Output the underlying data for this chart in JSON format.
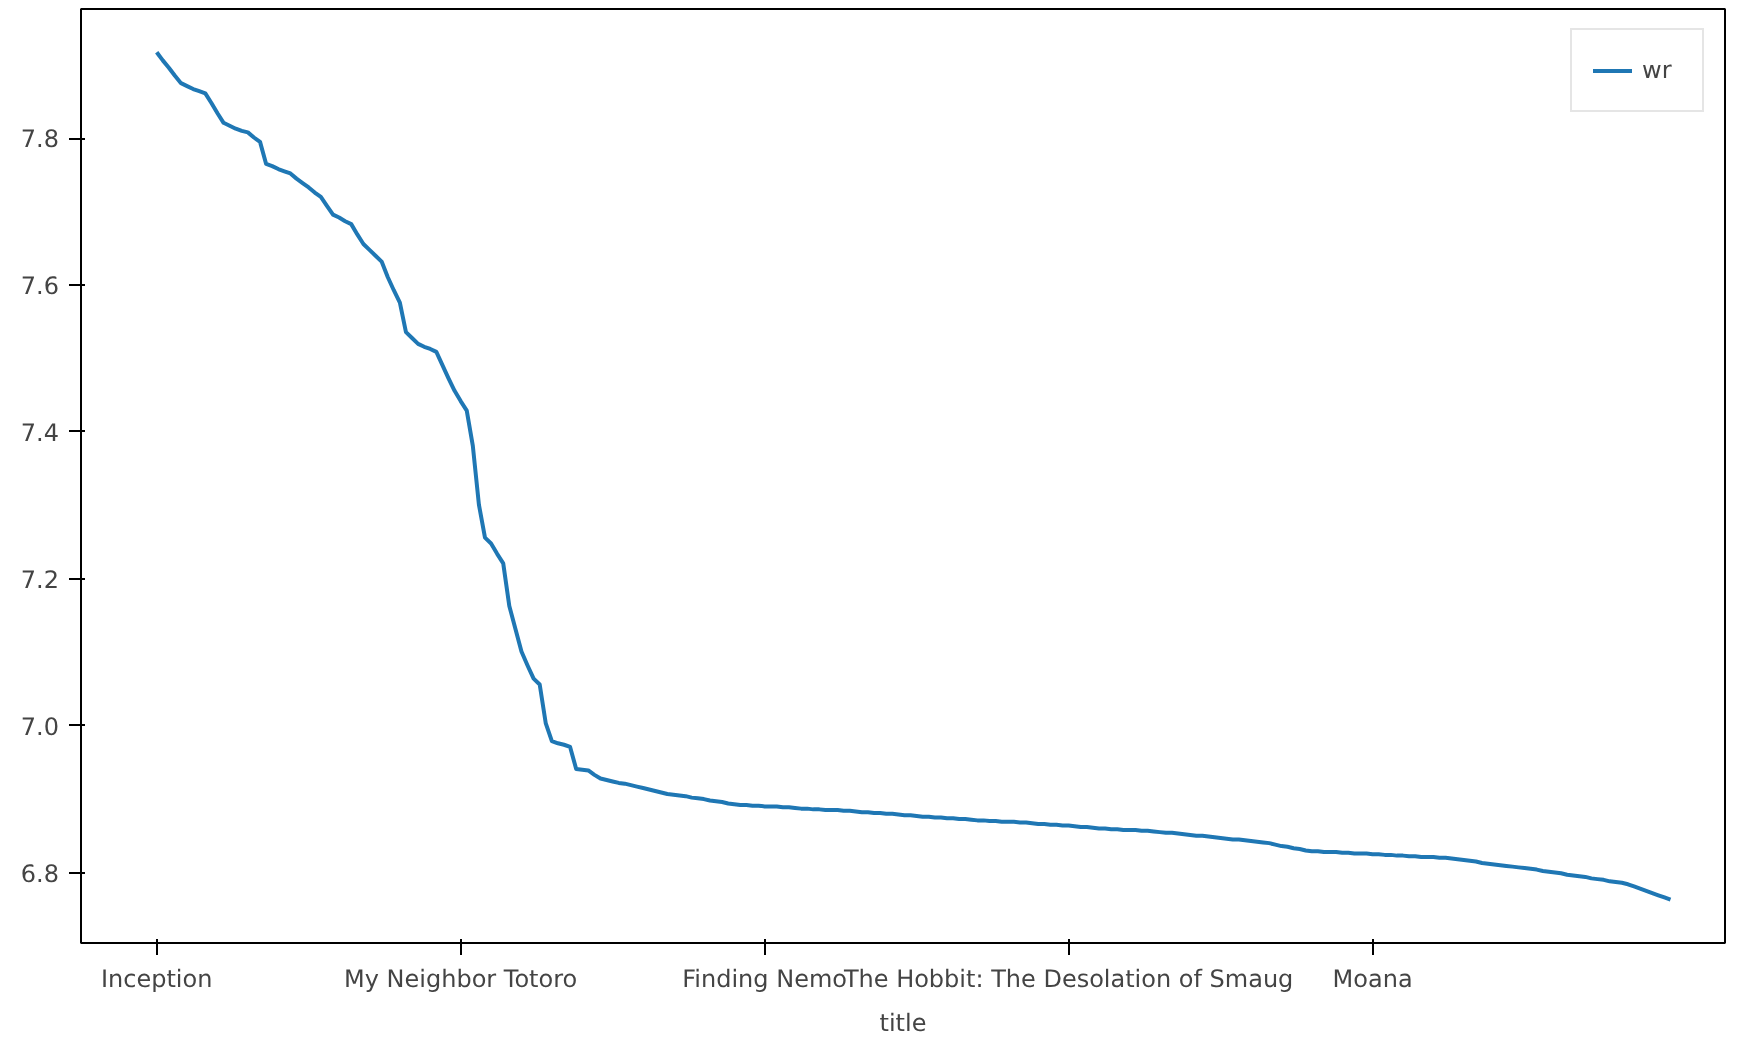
{
  "chart_data": {
    "type": "line",
    "xlabel": "title",
    "categories": [
      "Inception",
      null,
      null,
      null,
      null,
      null,
      null,
      null,
      null,
      null,
      null,
      null,
      null,
      null,
      null,
      null,
      null,
      null,
      null,
      null,
      null,
      null,
      null,
      null,
      null,
      null,
      null,
      null,
      null,
      null,
      null,
      null,
      null,
      null,
      null,
      null,
      null,
      null,
      null,
      null,
      null,
      null,
      null,
      null,
      null,
      null,
      null,
      null,
      null,
      null,
      "My Neighbor Totoro",
      null,
      null,
      null,
      null,
      null,
      null,
      null,
      null,
      null,
      null,
      null,
      null,
      null,
      null,
      null,
      null,
      null,
      null,
      null,
      null,
      null,
      null,
      null,
      null,
      null,
      null,
      null,
      null,
      null,
      null,
      null,
      null,
      null,
      null,
      null,
      null,
      null,
      null,
      null,
      null,
      null,
      null,
      null,
      null,
      null,
      null,
      null,
      null,
      null,
      "Finding Nemo",
      null,
      null,
      null,
      null,
      null,
      null,
      null,
      null,
      null,
      null,
      null,
      null,
      null,
      null,
      null,
      null,
      null,
      null,
      null,
      null,
      null,
      null,
      null,
      null,
      null,
      null,
      null,
      null,
      null,
      null,
      null,
      null,
      null,
      null,
      null,
      null,
      null,
      null,
      null,
      null,
      null,
      null,
      null,
      null,
      null,
      null,
      null,
      null,
      null,
      "The Hobbit: The Desolation of Smaug",
      null,
      null,
      null,
      null,
      null,
      null,
      null,
      null,
      null,
      null,
      null,
      null,
      null,
      null,
      null,
      null,
      null,
      null,
      null,
      null,
      null,
      null,
      null,
      null,
      null,
      null,
      null,
      null,
      null,
      null,
      null,
      null,
      null,
      null,
      null,
      null,
      null,
      null,
      null,
      null,
      null,
      null,
      null,
      null,
      null,
      null,
      null,
      null,
      null,
      "Moana",
      null,
      null,
      null,
      null,
      null,
      null,
      null,
      null,
      null,
      null,
      null,
      null,
      null,
      null,
      null,
      null,
      null,
      null,
      null,
      null,
      null,
      null,
      null,
      null,
      null,
      null,
      null,
      null,
      null,
      null,
      null,
      null,
      null,
      null,
      null,
      null,
      null,
      null,
      null,
      null,
      null,
      null,
      null,
      null,
      null,
      null,
      null,
      null,
      null
    ],
    "series": [
      {
        "name": "wr",
        "color": "#1f77b4",
        "values": [
          7.917,
          7.906,
          7.896,
          7.885,
          7.875,
          7.871,
          7.867,
          7.864,
          7.861,
          7.848,
          7.834,
          7.821,
          7.817,
          7.813,
          7.81,
          7.808,
          7.801,
          7.795,
          7.765,
          7.762,
          7.758,
          7.755,
          7.752,
          7.745,
          7.739,
          7.733,
          7.726,
          7.72,
          7.708,
          7.696,
          7.692,
          7.687,
          7.683,
          7.669,
          7.656,
          7.648,
          7.64,
          7.632,
          7.611,
          7.593,
          7.576,
          7.536,
          7.528,
          7.52,
          7.516,
          7.513,
          7.509,
          7.491,
          7.473,
          7.456,
          7.442,
          7.429,
          7.381,
          7.301,
          7.256,
          7.248,
          7.234,
          7.221,
          7.163,
          7.132,
          7.101,
          7.082,
          7.064,
          7.056,
          7.003,
          6.979,
          6.976,
          6.974,
          6.971,
          6.941,
          6.94,
          6.939,
          6.933,
          6.928,
          6.926,
          6.924,
          6.922,
          6.921,
          6.919,
          6.917,
          6.915,
          6.913,
          6.911,
          6.909,
          6.907,
          6.906,
          6.905,
          6.904,
          6.902,
          6.901,
          6.9,
          6.898,
          6.897,
          6.896,
          6.894,
          6.893,
          6.892,
          6.892,
          6.891,
          6.891,
          6.89,
          6.89,
          6.89,
          6.889,
          6.889,
          6.888,
          6.887,
          6.887,
          6.886,
          6.886,
          6.885,
          6.885,
          6.885,
          6.884,
          6.884,
          6.883,
          6.882,
          6.882,
          6.881,
          6.881,
          6.88,
          6.88,
          6.879,
          6.878,
          6.878,
          6.877,
          6.876,
          6.876,
          6.875,
          6.875,
          6.874,
          6.874,
          6.873,
          6.873,
          6.872,
          6.871,
          6.871,
          6.87,
          6.87,
          6.869,
          6.869,
          6.869,
          6.868,
          6.868,
          6.867,
          6.866,
          6.866,
          6.865,
          6.865,
          6.864,
          6.864,
          6.863,
          6.862,
          6.862,
          6.861,
          6.86,
          6.86,
          6.859,
          6.859,
          6.858,
          6.858,
          6.858,
          6.857,
          6.857,
          6.856,
          6.855,
          6.854,
          6.854,
          6.853,
          6.852,
          6.851,
          6.85,
          6.85,
          6.849,
          6.848,
          6.847,
          6.846,
          6.845,
          6.845,
          6.844,
          6.843,
          6.842,
          6.841,
          6.84,
          6.838,
          6.836,
          6.835,
          6.833,
          6.832,
          6.83,
          6.829,
          6.829,
          6.828,
          6.828,
          6.828,
          6.827,
          6.827,
          6.826,
          6.826,
          6.826,
          6.825,
          6.825,
          6.824,
          6.824,
          6.823,
          6.823,
          6.822,
          6.822,
          6.821,
          6.821,
          6.821,
          6.82,
          6.82,
          6.819,
          6.818,
          6.817,
          6.816,
          6.815,
          6.813,
          6.812,
          6.811,
          6.81,
          6.809,
          6.808,
          6.807,
          6.806,
          6.805,
          6.804,
          6.802,
          6.801,
          6.8,
          6.799,
          6.797,
          6.796,
          6.795,
          6.794,
          6.792,
          6.791,
          6.79,
          6.788,
          6.787,
          6.786,
          6.784,
          6.781,
          6.778,
          6.775,
          6.772,
          6.769,
          6.766,
          6.763
        ]
      }
    ],
    "ylim": [
      6.704,
      7.976
    ],
    "yticks": [
      {
        "value": 6.8,
        "label": "6.8"
      },
      {
        "value": 7.0,
        "label": "7.0"
      },
      {
        "value": 7.2,
        "label": "7.2"
      },
      {
        "value": 7.4,
        "label": "7.4"
      },
      {
        "value": 7.6,
        "label": "7.6"
      },
      {
        "value": 7.8,
        "label": "7.8"
      }
    ],
    "grid": false,
    "legend": "top right",
    "line_style": "solid"
  }
}
